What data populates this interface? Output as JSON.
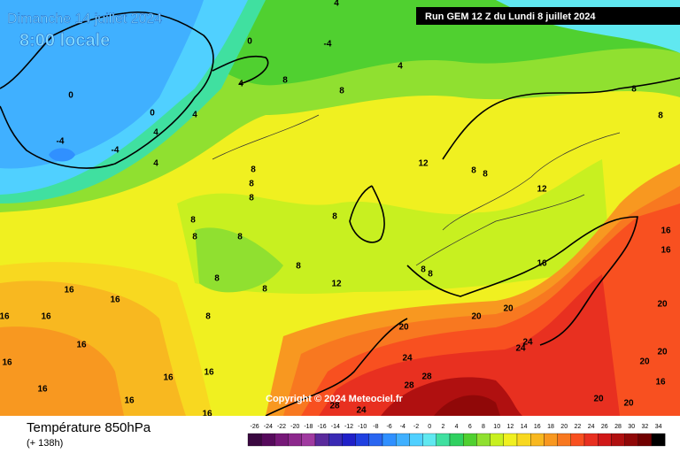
{
  "header": {
    "date": "Dimanche 14 juillet 2024",
    "time": "8:00 locale",
    "run": "Run GEM 12 Z du Lundi 8 juillet 2024"
  },
  "copyright": "Copyright © 2024 Meteociel.fr",
  "footer": {
    "title": "Température 850hPa",
    "lead": "(+ 138h)"
  },
  "legend": {
    "values": [
      -26,
      -24,
      -22,
      -20,
      -18,
      -16,
      -14,
      -12,
      -10,
      -8,
      -6,
      -4,
      -2,
      0,
      2,
      4,
      6,
      8,
      10,
      12,
      14,
      16,
      18,
      20,
      22,
      24,
      26,
      28,
      30,
      32,
      34
    ],
    "colors": [
      "#3a0840",
      "#560a5c",
      "#761878",
      "#8c288c",
      "#a03aa0",
      "#5a2a9c",
      "#3a2ab4",
      "#2020c8",
      "#2040e0",
      "#2a66f0",
      "#3090ff",
      "#40b0ff",
      "#50d0ff",
      "#60e8f0",
      "#40e0a0",
      "#30d060",
      "#50d030",
      "#90e030",
      "#c8f020",
      "#f0f020",
      "#f8d820",
      "#f8b820",
      "#f89820",
      "#f87820",
      "#f85020",
      "#e83020",
      "#d01818",
      "#b01010",
      "#900808",
      "#700000",
      "#000000"
    ]
  },
  "contour_labels": [
    4,
    0,
    -4,
    4,
    4,
    8,
    8,
    4,
    4,
    4,
    0,
    0,
    -4,
    -4,
    8,
    8,
    8,
    12,
    8,
    8,
    12,
    8,
    8,
    8,
    8,
    8,
    8,
    8,
    8,
    8,
    8,
    12,
    8,
    8,
    16,
    16,
    16,
    16,
    16,
    16,
    16,
    16,
    16,
    16,
    16,
    16,
    16,
    16,
    20,
    20,
    20,
    24,
    24,
    24,
    28,
    28,
    28,
    24,
    20,
    20,
    20,
    20,
    20,
    16
  ]
}
